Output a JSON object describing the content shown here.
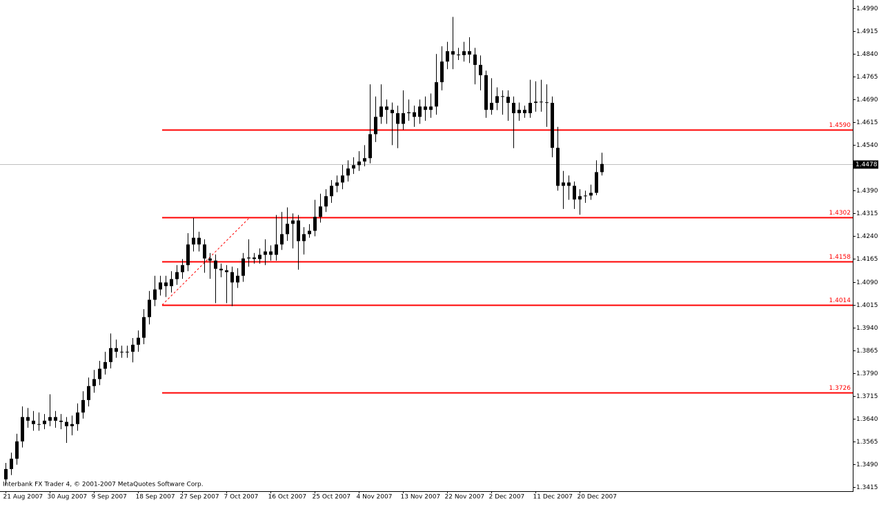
{
  "chart_data": {
    "type": "candlestick",
    "footer": "Interbank FX Trader 4, © 2001-2007 MetaQuotes Software Corp.",
    "color": "#000000",
    "level_color": "#ff0000",
    "categories": [
      "21 Aug 2007",
      null,
      null,
      null,
      null,
      null,
      null,
      null,
      "30 Aug 2007",
      null,
      null,
      null,
      null,
      null,
      null,
      null,
      "9 Sep 2007",
      null,
      null,
      null,
      null,
      null,
      null,
      null,
      "18 Sep 2007",
      null,
      null,
      null,
      null,
      null,
      null,
      null,
      "27 Sep 2007",
      null,
      null,
      null,
      null,
      null,
      null,
      null,
      "7 Oct 2007",
      null,
      null,
      null,
      null,
      null,
      null,
      null,
      "16 Oct 2007",
      null,
      null,
      null,
      null,
      null,
      null,
      null,
      "25 Oct 2007",
      null,
      null,
      null,
      null,
      null,
      null,
      null,
      "4 Nov 2007",
      null,
      null,
      null,
      null,
      null,
      null,
      null,
      "13 Nov 2007",
      null,
      null,
      null,
      null,
      null,
      null,
      null,
      "22 Nov 2007",
      null,
      null,
      null,
      null,
      null,
      null,
      null,
      "2 Dec 2007",
      null,
      null,
      null,
      null,
      null,
      null,
      null,
      "11 Dec 2007",
      null,
      null,
      null,
      null,
      null,
      null,
      null,
      "20 Dec 2007",
      null,
      null,
      null,
      null
    ],
    "open": [
      1.344,
      1.3474,
      1.3508,
      1.3565,
      1.3645,
      1.3633,
      1.3622,
      1.3622,
      1.3633,
      1.3645,
      1.3633,
      1.3629,
      1.3615,
      1.3622,
      1.366,
      1.3701,
      1.3747,
      1.377,
      1.3804,
      1.3826,
      1.3872,
      1.386,
      1.3858,
      1.386,
      1.3883,
      1.3906,
      1.3974,
      1.4031,
      1.4065,
      1.4088,
      1.4076,
      1.4099,
      1.4122,
      1.4145,
      1.4213,
      1.4235,
      1.4213,
      1.4167,
      1.416,
      1.4133,
      1.4128,
      1.4122,
      1.4088,
      1.411,
      1.4167,
      1.417,
      1.4165,
      1.4179,
      1.419,
      1.4179,
      1.4213,
      1.4247,
      1.4281,
      1.4292,
      1.4224,
      1.4247,
      1.4258,
      1.4304,
      1.4338,
      1.4372,
      1.4406,
      1.4417,
      1.444,
      1.4463,
      1.4474,
      1.4486,
      1.4497,
      1.4576,
      1.4633,
      1.4667,
      1.4656,
      1.4645,
      1.461,
      1.4645,
      1.4648,
      1.4633,
      1.4667,
      1.4656,
      1.4667,
      1.4747,
      1.4815,
      1.4849,
      1.4838,
      1.4836,
      1.4849,
      1.4838,
      1.4804,
      1.477,
      1.4656,
      1.4679,
      1.4701,
      1.4699,
      1.4679,
      1.4645,
      1.4656,
      1.4645,
      1.4679,
      1.4683,
      1.4681,
      1.4679,
      1.4531,
      1.4406,
      1.4417,
      1.4406,
      1.4361,
      1.4372,
      1.4374,
      1.4383,
      1.4451
    ],
    "high": [
      1.3494,
      1.3528,
      1.359,
      1.368,
      1.3675,
      1.3665,
      1.366,
      1.3655,
      1.372,
      1.3665,
      1.3655,
      1.3645,
      1.365,
      1.369,
      1.373,
      1.3775,
      1.38,
      1.383,
      1.386,
      1.392,
      1.39,
      1.388,
      1.388,
      1.3905,
      1.393,
      1.4,
      1.406,
      1.411,
      1.411,
      1.411,
      1.4125,
      1.4145,
      1.4165,
      1.425,
      1.43,
      1.4255,
      1.423,
      1.4185,
      1.418,
      1.415,
      1.4145,
      1.414,
      1.4135,
      1.4185,
      1.423,
      1.4185,
      1.42,
      1.423,
      1.421,
      1.431,
      1.432,
      1.4335,
      1.4315,
      1.431,
      1.427,
      1.428,
      1.436,
      1.438,
      1.4395,
      1.4425,
      1.444,
      1.4475,
      1.449,
      1.45,
      1.452,
      1.454,
      1.474,
      1.47,
      1.474,
      1.469,
      1.468,
      1.467,
      1.472,
      1.469,
      1.467,
      1.469,
      1.47,
      1.471,
      1.484,
      1.4865,
      1.488,
      1.4962,
      1.486,
      1.488,
      1.4895,
      1.486,
      1.4835,
      1.4785,
      1.476,
      1.473,
      1.472,
      1.472,
      1.47,
      1.468,
      1.467,
      1.4755,
      1.475,
      1.4755,
      1.474,
      1.47,
      1.46,
      1.4455,
      1.444,
      1.442,
      1.4395,
      1.439,
      1.441,
      1.449,
      1.4515
    ],
    "low": [
      1.342,
      1.3454,
      1.3488,
      1.3545,
      1.361,
      1.36,
      1.36,
      1.3605,
      1.3615,
      1.361,
      1.3605,
      1.356,
      1.3585,
      1.36,
      1.364,
      1.368,
      1.3725,
      1.375,
      1.3785,
      1.3805,
      1.384,
      1.384,
      1.384,
      1.3825,
      1.386,
      1.3885,
      1.395,
      1.401,
      1.4045,
      1.404,
      1.4055,
      1.408,
      1.41,
      1.4125,
      1.419,
      1.419,
      1.412,
      1.41,
      1.402,
      1.4105,
      1.402,
      1.401,
      1.407,
      1.409,
      1.414,
      1.415,
      1.415,
      1.4145,
      1.416,
      1.416,
      1.4195,
      1.4225,
      1.42,
      1.413,
      1.418,
      1.4235,
      1.424,
      1.4285,
      1.432,
      1.435,
      1.4385,
      1.4395,
      1.442,
      1.4445,
      1.4455,
      1.447,
      1.448,
      1.455,
      1.461,
      1.461,
      1.454,
      1.453,
      1.459,
      1.462,
      1.46,
      1.461,
      1.462,
      1.463,
      1.464,
      1.472,
      1.479,
      1.479,
      1.482,
      1.4815,
      1.481,
      1.474,
      1.472,
      1.463,
      1.464,
      1.4655,
      1.464,
      1.462,
      1.453,
      1.462,
      1.463,
      1.463,
      1.465,
      1.465,
      1.46,
      1.45,
      1.439,
      1.433,
      1.436,
      1.433,
      1.4311,
      1.435,
      1.436,
      1.4375,
      1.444
    ],
    "close": [
      1.3474,
      1.3508,
      1.3565,
      1.3645,
      1.3633,
      1.3622,
      1.3622,
      1.3633,
      1.3645,
      1.3633,
      1.3629,
      1.3615,
      1.3622,
      1.366,
      1.3701,
      1.3747,
      1.377,
      1.3804,
      1.3826,
      1.3872,
      1.386,
      1.3858,
      1.386,
      1.3883,
      1.3906,
      1.3974,
      1.4031,
      1.4065,
      1.4088,
      1.4076,
      1.4099,
      1.4122,
      1.4145,
      1.4213,
      1.4235,
      1.4213,
      1.4167,
      1.416,
      1.4133,
      1.4128,
      1.4122,
      1.4088,
      1.411,
      1.4167,
      1.417,
      1.4165,
      1.4179,
      1.419,
      1.4179,
      1.4213,
      1.4247,
      1.4281,
      1.4292,
      1.4224,
      1.4247,
      1.4258,
      1.4304,
      1.4338,
      1.4372,
      1.4406,
      1.4417,
      1.444,
      1.4463,
      1.4474,
      1.4486,
      1.4497,
      1.4576,
      1.4633,
      1.4667,
      1.4656,
      1.4645,
      1.461,
      1.4645,
      1.4648,
      1.4633,
      1.4667,
      1.4656,
      1.4667,
      1.4747,
      1.4815,
      1.4849,
      1.4838,
      1.4836,
      1.4849,
      1.4838,
      1.4804,
      1.477,
      1.4656,
      1.4679,
      1.4701,
      1.4699,
      1.4679,
      1.4645,
      1.4656,
      1.4645,
      1.4679,
      1.4683,
      1.4681,
      1.4679,
      1.4531,
      1.4406,
      1.4417,
      1.4406,
      1.4361,
      1.4372,
      1.4374,
      1.4383,
      1.4451,
      1.4478
    ],
    "ylim": [
      1.3401,
      1.5013
    ],
    "yticks": [
      {
        "value": 1.499,
        "label": "1.4990"
      },
      1.4915,
      {
        "value": 1.484,
        "label": "1.4840"
      },
      1.4765,
      {
        "value": 1.469,
        "label": "1.4690"
      },
      1.4615,
      {
        "value": 1.454,
        "label": "1.4540"
      },
      {
        "value": 1.439,
        "label": "1.4390"
      },
      1.4315,
      {
        "value": 1.424,
        "label": "1.4240"
      },
      1.4165,
      {
        "value": 1.409,
        "label": "1.4090"
      },
      1.4015,
      {
        "value": 1.394,
        "label": "1.3940"
      },
      1.3865,
      {
        "value": 1.379,
        "label": "1.3790"
      },
      1.3715,
      {
        "value": 1.364,
        "label": "1.3640"
      },
      1.3565,
      {
        "value": 1.349,
        "label": "1.3490"
      },
      1.3415
    ],
    "levels": [
      {
        "value": 1.459,
        "label": "1.4590"
      },
      1.4302,
      1.4158,
      1.4014,
      1.3726
    ],
    "trendline": [
      1.4014,
      1.4302
    ],
    "current_price": 1.4478
  }
}
